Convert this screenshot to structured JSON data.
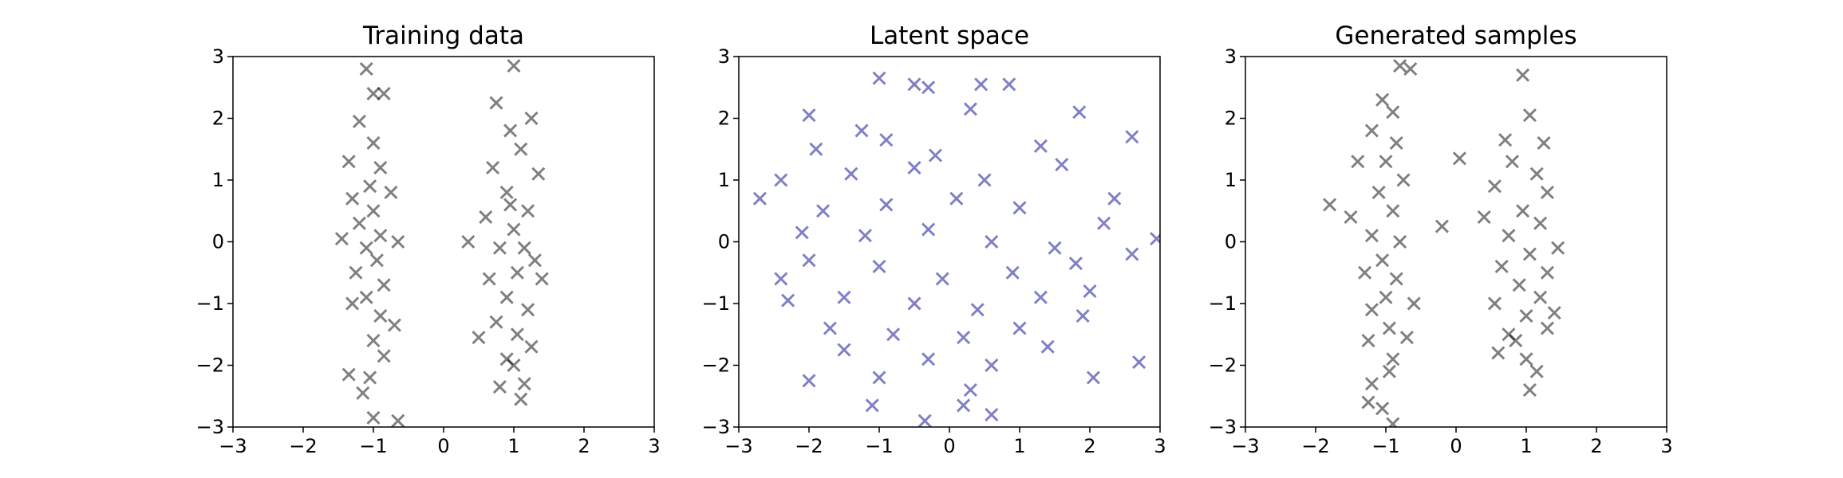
{
  "chart_data": [
    {
      "type": "scatter",
      "title": "Training data",
      "color": "#000000",
      "opacity": 0.5,
      "marker": "x",
      "x": [
        -1.1,
        -1.0,
        -0.85,
        -1.2,
        -1.0,
        -1.35,
        -0.9,
        -1.05,
        -1.3,
        -0.75,
        -1.0,
        -1.2,
        -0.9,
        -1.45,
        -1.1,
        -0.65,
        -0.95,
        -1.25,
        -0.85,
        -1.1,
        -0.9,
        -1.3,
        -0.7,
        -1.0,
        -0.85,
        -1.35,
        -1.05,
        -1.15,
        -1.0,
        -0.65,
        1.0,
        0.75,
        1.25,
        0.95,
        1.1,
        0.7,
        1.35,
        0.9,
        1.2,
        0.6,
        1.0,
        0.35,
        0.8,
        1.3,
        1.05,
        0.65,
        1.4,
        0.9,
        1.2,
        0.75,
        1.05,
        0.5,
        1.25,
        0.9,
        1.0,
        1.15,
        0.8,
        1.1,
        0.95,
        1.15
      ],
      "values": [
        2.8,
        2.4,
        2.4,
        1.95,
        1.6,
        1.3,
        1.2,
        0.9,
        0.7,
        0.8,
        0.5,
        0.3,
        0.1,
        0.05,
        -0.1,
        0,
        -0.3,
        -0.5,
        -0.7,
        -0.9,
        -1.2,
        -1.0,
        -1.35,
        -1.6,
        -1.85,
        -2.15,
        -2.2,
        -2.45,
        -2.85,
        -2.9,
        2.85,
        2.25,
        2.0,
        1.8,
        1.5,
        1.2,
        1.1,
        0.8,
        0.5,
        0.4,
        0.2,
        0.0,
        -0.1,
        -0.3,
        -0.5,
        -0.6,
        -0.6,
        -0.9,
        -1.1,
        -1.3,
        -1.5,
        -1.55,
        -1.7,
        -1.9,
        -2.0,
        -2.3,
        -2.35,
        -2.55,
        0.6,
        -0.1
      ],
      "xlim": [
        -3,
        3
      ],
      "ylim": [
        -3,
        3
      ],
      "xticks": [
        {
          "value": -3,
          "label": "−3"
        },
        {
          "value": -2,
          "label": "−2"
        },
        {
          "value": -1,
          "label": "−1"
        },
        0,
        1,
        2,
        3
      ],
      "yticks": [
        {
          "value": -3,
          "label": "−3"
        },
        {
          "value": -2,
          "label": "−2"
        },
        {
          "value": -1,
          "label": "−1"
        },
        0,
        1,
        2,
        3
      ]
    },
    {
      "type": "scatter",
      "title": "Latent space",
      "color": "#00008b",
      "opacity": 0.5,
      "marker": "x",
      "x": [
        -1.0,
        -0.5,
        -0.3,
        0.45,
        0.85,
        -2.0,
        1.85,
        2.6,
        -1.25,
        0.3,
        -0.9,
        -0.2,
        1.3,
        -1.9,
        -2.7,
        -2.4,
        -1.4,
        -0.5,
        0.5,
        1.6,
        2.35,
        -1.8,
        -0.9,
        0.1,
        1.0,
        2.2,
        -2.1,
        -1.2,
        -0.3,
        0.6,
        1.5,
        2.95,
        2.6,
        -2.0,
        -1.0,
        -0.1,
        0.9,
        1.8,
        -2.4,
        -1.5,
        -0.5,
        0.4,
        1.3,
        2.0,
        -2.3,
        -1.7,
        -0.8,
        0.2,
        1.0,
        1.9,
        -1.5,
        -0.3,
        0.6,
        1.4,
        -2.0,
        -1.0,
        0.3,
        2.7,
        2.05,
        -1.1,
        -0.35,
        0.6,
        0.2
      ],
      "values": [
        2.65,
        2.55,
        2.5,
        2.55,
        2.55,
        2.05,
        2.1,
        1.7,
        1.8,
        2.15,
        1.65,
        1.4,
        1.55,
        1.5,
        0.7,
        1.0,
        1.1,
        1.2,
        1.0,
        1.25,
        0.7,
        0.5,
        0.6,
        0.7,
        0.55,
        0.3,
        0.15,
        0.1,
        0.2,
        0.0,
        -0.1,
        0.05,
        -0.2,
        -0.3,
        -0.4,
        -0.6,
        -0.5,
        -0.35,
        -0.6,
        -0.9,
        -1.0,
        -1.1,
        -0.9,
        -0.8,
        -0.95,
        -1.4,
        -1.5,
        -1.55,
        -1.4,
        -1.2,
        -1.75,
        -1.9,
        -2.0,
        -1.7,
        -2.25,
        -2.2,
        -2.4,
        -1.95,
        -2.2,
        -2.65,
        -2.9,
        -2.8,
        -2.65
      ],
      "xlim": [
        -3,
        3
      ],
      "ylim": [
        -3,
        3
      ],
      "xticks": [
        {
          "value": -3,
          "label": "−3"
        },
        {
          "value": -2,
          "label": "−2"
        },
        {
          "value": -1,
          "label": "−1"
        },
        0,
        1,
        2,
        3
      ],
      "yticks": [
        {
          "value": -3,
          "label": "−3"
        },
        {
          "value": -2,
          "label": "−2"
        },
        {
          "value": -1,
          "label": "−1"
        },
        0,
        1,
        2,
        3
      ]
    },
    {
      "type": "scatter",
      "title": "Generated samples",
      "color": "#000000",
      "opacity": 0.5,
      "marker": "x",
      "x": [
        -0.8,
        -0.65,
        -1.05,
        -0.9,
        -1.2,
        -0.85,
        -1.0,
        -1.4,
        -0.75,
        -1.1,
        -1.8,
        -1.5,
        -0.9,
        -1.2,
        -0.8,
        -1.05,
        -1.3,
        -0.85,
        -1.0,
        -1.2,
        -0.6,
        -0.95,
        -1.25,
        -0.7,
        -0.9,
        -0.95,
        -1.2,
        -1.25,
        -1.05,
        -0.9,
        0.05,
        -0.2,
        0.95,
        1.05,
        0.7,
        1.25,
        0.8,
        1.15,
        0.55,
        1.3,
        0.95,
        0.4,
        1.2,
        0.75,
        1.45,
        1.05,
        0.65,
        1.3,
        0.9,
        1.2,
        0.55,
        1.0,
        0.75,
        1.3,
        0.6,
        1.0,
        1.15,
        1.05,
        0.85,
        1.4
      ],
      "values": [
        2.85,
        2.8,
        2.3,
        2.1,
        1.8,
        1.6,
        1.3,
        1.3,
        1.0,
        0.8,
        0.6,
        0.4,
        0.5,
        0.1,
        0.0,
        -0.3,
        -0.5,
        -0.6,
        -0.9,
        -1.1,
        -1.0,
        -1.4,
        -1.6,
        -1.55,
        -1.9,
        -2.1,
        -2.3,
        -2.6,
        -2.7,
        -2.95,
        1.35,
        0.25,
        2.7,
        2.05,
        1.65,
        1.6,
        1.3,
        1.1,
        0.9,
        0.8,
        0.5,
        0.4,
        0.3,
        0.1,
        -0.1,
        -0.2,
        -0.4,
        -0.5,
        -0.7,
        -0.9,
        -1.0,
        -1.2,
        -1.5,
        -1.4,
        -1.8,
        -1.9,
        -2.1,
        -2.4,
        -1.6,
        -1.15
      ],
      "xlim": [
        -3,
        3
      ],
      "ylim": [
        -3,
        3
      ],
      "xticks": [
        {
          "value": -3,
          "label": "−3"
        },
        {
          "value": -2,
          "label": "−2"
        },
        {
          "value": -1,
          "label": "−1"
        },
        0,
        1,
        2,
        3
      ],
      "yticks": [
        {
          "value": -3,
          "label": "−3"
        },
        {
          "value": -2,
          "label": "−2"
        },
        {
          "value": -1,
          "label": "−1"
        },
        0,
        1,
        2,
        3
      ]
    }
  ]
}
